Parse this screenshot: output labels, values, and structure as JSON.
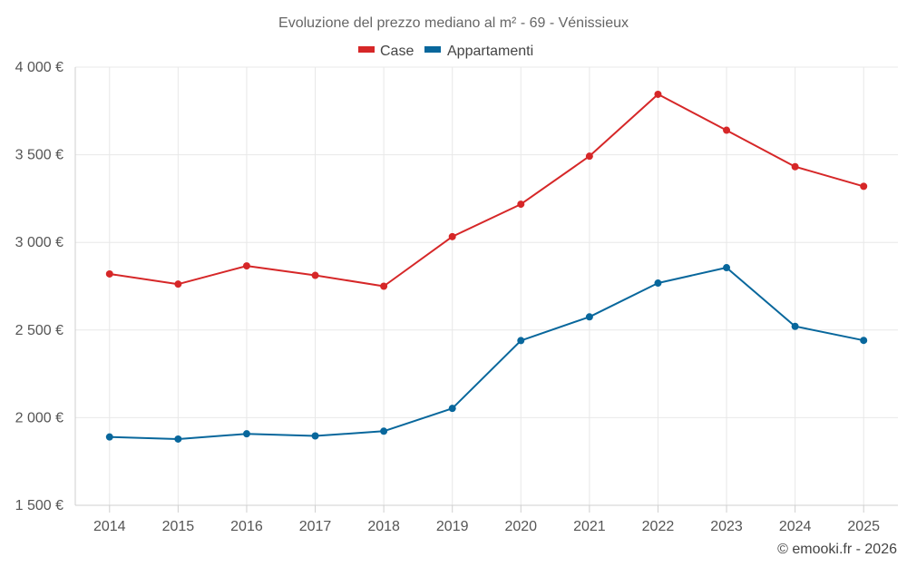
{
  "chart_data": {
    "type": "line",
    "title": "Evoluzione del prezzo mediano al m² - 69 - Vénissieux",
    "categories": [
      "2014",
      "2015",
      "2016",
      "2017",
      "2018",
      "2019",
      "2020",
      "2021",
      "2022",
      "2023",
      "2024",
      "2025"
    ],
    "ylim": [
      1500,
      4000
    ],
    "yticks": [
      1500,
      2000,
      2500,
      3000,
      3500,
      4000
    ],
    "ytick_labels": [
      "1 500 €",
      "2 000 €",
      "2 500 €",
      "3 000 €",
      "3 500 €",
      "4 000 €"
    ],
    "grid": true,
    "legend_position": "top-center",
    "series": [
      {
        "name": "Case",
        "color": "#d62728",
        "values": [
          2820,
          2762,
          2866,
          2812,
          2750,
          3033,
          3218,
          3492,
          3845,
          3640,
          3432,
          3320
        ]
      },
      {
        "name": "Appartamenti",
        "color": "#08679c",
        "values": [
          1890,
          1878,
          1908,
          1896,
          1923,
          2053,
          2440,
          2575,
          2768,
          2856,
          2521,
          2441
        ]
      }
    ],
    "credit": "© emooki.fr - 2026"
  }
}
